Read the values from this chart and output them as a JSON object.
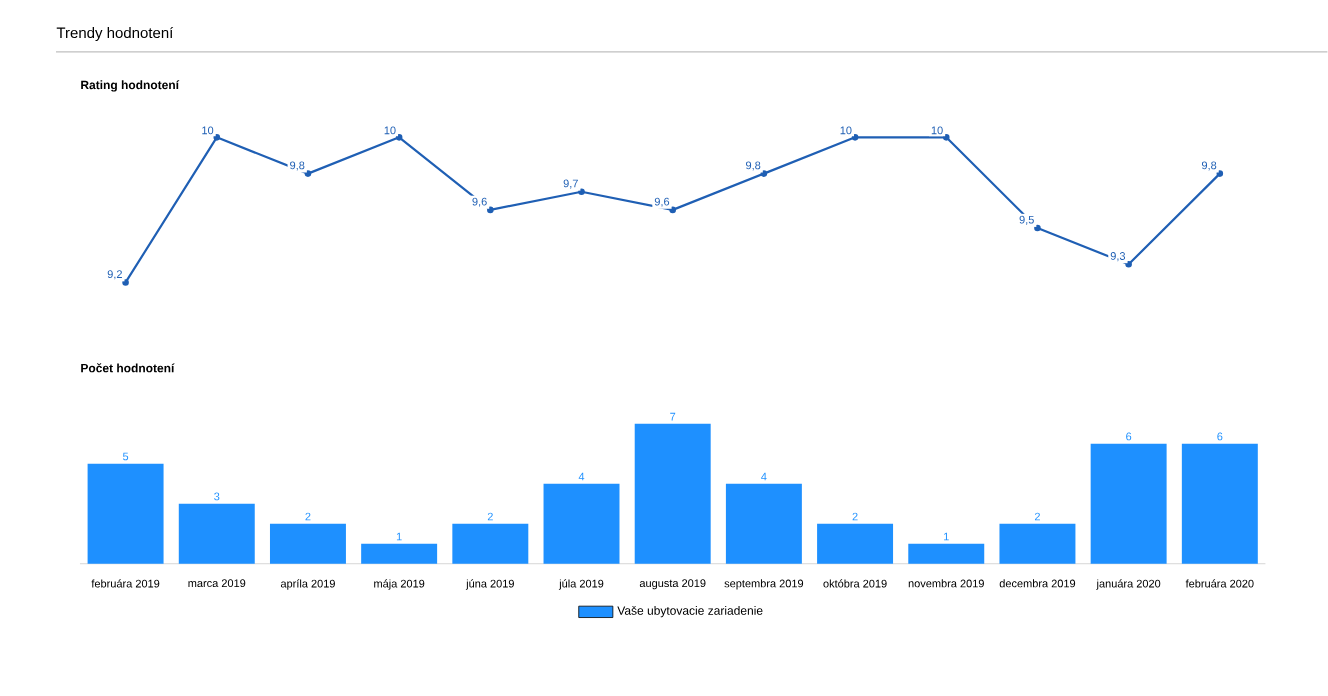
{
  "chart_data": [
    {
      "type": "line",
      "title": "Trendy hodnotení",
      "subtitle": "Rating hodnotení",
      "categories": [
        null,
        null,
        null,
        null,
        null,
        null,
        null,
        null,
        null,
        null,
        null,
        null,
        null
      ],
      "series": [
        {
          "color": "#1f5fb4",
          "values": [
            9.2,
            10,
            9.8,
            10,
            9.6,
            9.7,
            9.6,
            9.8,
            10,
            10,
            9.5,
            9.3,
            9.8
          ],
          "value_labels": [
            "9,2",
            "10",
            "9,8",
            "10",
            "9,6",
            "9,7",
            "9,6",
            "9,8",
            "10",
            "10",
            "9,5",
            "9,3",
            "9,8"
          ]
        }
      ],
      "tick_labels": false,
      "marker": "circle",
      "line_style": "solid"
    },
    {
      "type": "bar",
      "title": "Počet hodnotení",
      "categories": [
        "februára 2019",
        "marca 2019",
        "apríla 2019",
        "mája 2019",
        "júna 2019",
        "júla 2019",
        "augusta 2019",
        "septembra 2019",
        "októbra 2019",
        "novembra 2019",
        "decembra 2019",
        "januára 2020",
        "februára 2020"
      ],
      "series": [
        {
          "name": "Vaše ubytovacie zariadenie",
          "color": "#1e90ff",
          "values": [
            5,
            3,
            2,
            1,
            2,
            4,
            7,
            4,
            2,
            1,
            2,
            6,
            6
          ]
        }
      ],
      "tick_labels": "x",
      "data_labels": true,
      "legend": "bottom"
    }
  ]
}
